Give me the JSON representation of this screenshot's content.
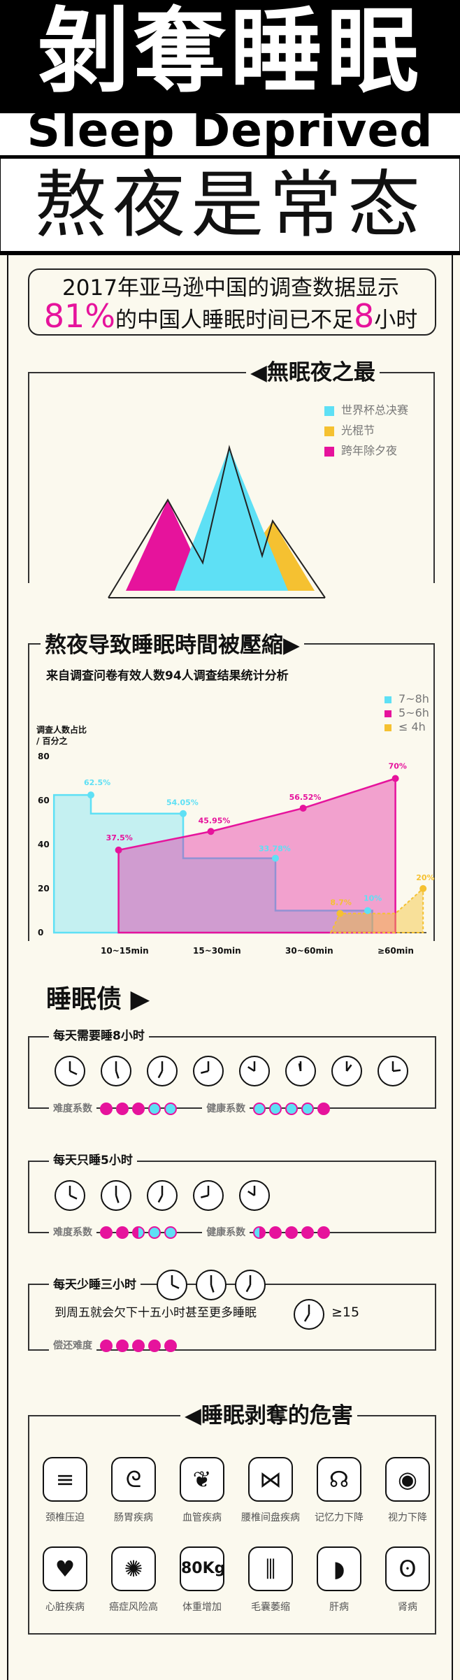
{
  "header": {
    "title_cn": "剝奪睡眠",
    "title_en": "Sleep Deprived",
    "subtitle": "熬夜是常态"
  },
  "intro": {
    "line1": "2017年亚马逊中国的调查数据显示",
    "line2_pct": "81%",
    "line2_mid": "的中国人睡眠时间已不足",
    "line2_num": "8",
    "line2_end": "小时"
  },
  "sleepless": {
    "title": "◀無眠夜之最",
    "legend": [
      {
        "label": "世界杯总决赛",
        "color": "#5ee0f5"
      },
      {
        "label": "光棍节",
        "color": "#f5c131"
      },
      {
        "label": "跨年除夕夜",
        "color": "#e6139c"
      }
    ]
  },
  "compress": {
    "title": "熬夜导致睡眠時間被壓縮▶",
    "subtitle": "来自调查问卷有效人数94人调查结果统计分析",
    "ylabel_line1": "调查人数占比",
    "ylabel_line2": "/ 百分之"
  },
  "chart_data": {
    "type": "area",
    "title": "熬夜导致睡眠時間被壓縮",
    "ylabel": "调查人数占比 / 百分之",
    "categories": [
      "10~15min",
      "15~30min",
      "30~60min",
      "≥60min"
    ],
    "ylim": [
      0,
      80
    ],
    "yticks": [
      0,
      20,
      40,
      60,
      80
    ],
    "series": [
      {
        "name": "7~8h",
        "color": "#5ee0f5",
        "x": [
          0,
          1,
          1,
          2,
          2,
          3,
          3
        ],
        "values": [
          62.5,
          54.05,
          33.78,
          33.78,
          10,
          10,
          10
        ],
        "labels": [
          "62.5%",
          "54.05%",
          "33.78%",
          "10%"
        ]
      },
      {
        "name": "5~6h",
        "color": "#e6139c",
        "x": [
          0,
          1,
          2,
          3
        ],
        "values": [
          37.5,
          45.95,
          56.52,
          70
        ],
        "labels": [
          "37.5%",
          "45.95%",
          "56.52%",
          "70%"
        ]
      },
      {
        "name": "≤ 4h",
        "color": "#f5c131",
        "x": [
          2.7,
          3.6
        ],
        "values": [
          8.7,
          20
        ],
        "labels": [
          "8.7%",
          "20%"
        ]
      }
    ]
  },
  "debt": {
    "title": "睡眠债 ▶",
    "box1": {
      "heading": "每天需要睡8小时",
      "difficulty": "难度系数",
      "health": "健康系数"
    },
    "box2": {
      "heading": "每天只睡5小时",
      "difficulty": "难度系数",
      "health": "健康系数"
    },
    "box3": {
      "heading": "每天少睡三小时",
      "line2": "到周五就会欠下十五小时甚至更多睡眠",
      "ge15": "≥15",
      "repay": "偿还难度"
    }
  },
  "harms": {
    "title": "◀睡眠剥奪的危害",
    "items": [
      {
        "label": "颈椎压迫",
        "icon": "spine-icon",
        "glyph": "≡"
      },
      {
        "label": "肠胃疾病",
        "icon": "stomach-icon",
        "glyph": "ᘓ"
      },
      {
        "label": "血管疾病",
        "icon": "vessel-icon",
        "glyph": "❦"
      },
      {
        "label": "腰椎间盘疾病",
        "icon": "lumbar-icon",
        "glyph": "⋈"
      },
      {
        "label": "记忆力下降",
        "icon": "brain-icon",
        "glyph": "☊"
      },
      {
        "label": "视力下降",
        "icon": "eye-icon",
        "glyph": "◉"
      },
      {
        "label": "心脏疾病",
        "icon": "heart-icon",
        "glyph": "♥"
      },
      {
        "label": "癌症风险高",
        "icon": "cell-icon",
        "glyph": "✺"
      },
      {
        "label": "体重增加",
        "icon": "weight-icon",
        "glyph": "80Kg"
      },
      {
        "label": "毛囊萎缩",
        "icon": "hair-icon",
        "glyph": "⫼"
      },
      {
        "label": "肝病",
        "icon": "liver-icon",
        "glyph": "◗"
      },
      {
        "label": "肾病",
        "icon": "kidney-icon",
        "glyph": "ʘ"
      }
    ]
  }
}
